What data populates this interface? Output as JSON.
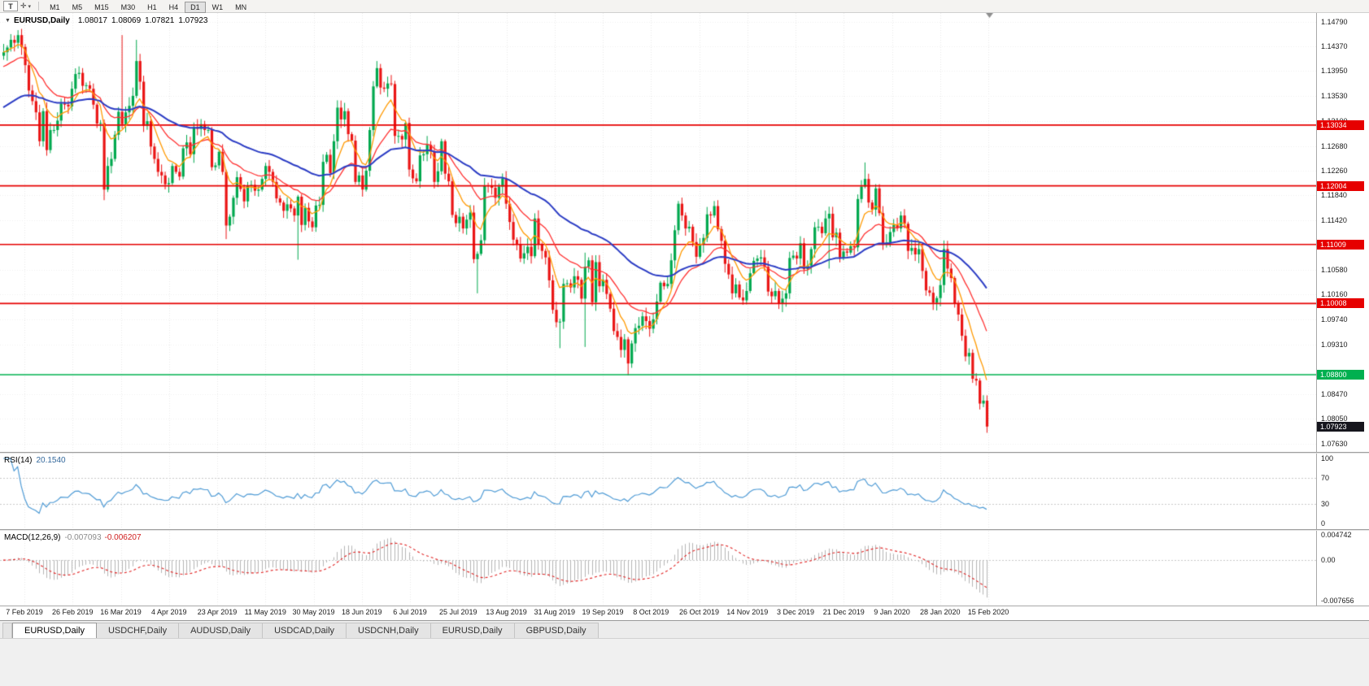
{
  "toolbar": {
    "text_tool_label": "T",
    "icons": {
      "crosshair": "✛",
      "caret": "▾"
    },
    "timeframes": [
      "M1",
      "M5",
      "M15",
      "M30",
      "H1",
      "H4",
      "D1",
      "W1",
      "MN"
    ],
    "active_timeframe": "D1"
  },
  "chart_title": {
    "collapse_icon": "▼",
    "symbol": "EURUSD,Daily",
    "open": "1.08017",
    "high": "1.08069",
    "low": "1.07821",
    "close": "1.07923"
  },
  "main_pane": {
    "y_axis_ticks": [
      "1.14790",
      "1.14370",
      "1.13950",
      "1.13530",
      "1.13100",
      "1.12680",
      "1.12260",
      "1.11840",
      "1.11420",
      "1.10580",
      "1.10160",
      "1.09740",
      "1.09310",
      "1.08470",
      "1.08050",
      "1.07630"
    ],
    "levels": [
      {
        "price": 1.13034,
        "label": "1.13034",
        "color": "#e60000"
      },
      {
        "price": 1.12004,
        "label": "1.12004",
        "color": "#e60000"
      },
      {
        "price": 1.11009,
        "label": "1.11009",
        "color": "#e60000"
      },
      {
        "price": 1.10008,
        "label": "1.10008",
        "color": "#e60000"
      },
      {
        "price": 1.088,
        "label": "1.08800",
        "color": "#00b050"
      }
    ],
    "current_price": {
      "price": 1.07923,
      "label": "1.07923",
      "color": "#16161d"
    }
  },
  "rsi": {
    "label": "RSI(14)",
    "value": "20.1540",
    "period": 14,
    "dashed_levels": [
      70,
      30
    ],
    "axis_labels": [
      {
        "v": 100,
        "t": "100"
      },
      {
        "v": 70,
        "t": "70"
      },
      {
        "v": 30,
        "t": "30"
      },
      {
        "v": 0,
        "t": "0"
      }
    ]
  },
  "macd": {
    "label": "MACD(12,26,9)",
    "value_main": "-0.007093",
    "value_signal": "-0.006207",
    "fast": 12,
    "slow": 26,
    "signal": 9,
    "axis_labels": [
      {
        "v": 0.004742,
        "t": "0.004742"
      },
      {
        "v": 0,
        "t": "0.00"
      },
      {
        "v": -0.007656,
        "t": "-0.007656"
      }
    ]
  },
  "bottom_tabs": {
    "items": [
      "EURUSD,Daily",
      "USDCHF,Daily",
      "AUDUSD,Daily",
      "USDCAD,Daily",
      "USDCNH,Daily",
      "EURUSD,Daily",
      "GBPUSD,Daily"
    ],
    "active_index": 0
  },
  "chart_data": {
    "type": "candlestick",
    "symbol": "EURUSD",
    "timeframe": "Daily",
    "current_quote": {
      "open": 1.08017,
      "high": 1.08069,
      "low": 1.07821,
      "close": 1.07923
    },
    "horizontal_levels": [
      1.13034,
      1.12004,
      1.11009,
      1.10008,
      1.088
    ],
    "y_range": [
      1.0763,
      1.1479
    ],
    "rsi_current": 20.154,
    "macd_current": -0.007093,
    "macd_signal_current": -0.006207,
    "dates": [
      "7 Feb 2019",
      "26 Feb 2019",
      "16 Mar 2019",
      "4 Apr 2019",
      "23 Apr 2019",
      "11 May 2019",
      "30 May 2019",
      "18 Jun 2019",
      "6 Jul 2019",
      "25 Jul 2019",
      "13 Aug 2019",
      "31 Aug 2019",
      "19 Sep 2019",
      "8 Oct 2019",
      "26 Oct 2019",
      "14 Nov 2019",
      "3 Dec 2019",
      "21 Dec 2019",
      "9 Jan 2020",
      "28 Jan 2020",
      "15 Feb 2020"
    ],
    "closes": [
      1.1427,
      1.1435,
      1.1448,
      1.1443,
      1.1456,
      1.1436,
      1.1405,
      1.1362,
      1.1344,
      1.1325,
      1.1276,
      1.1327,
      1.1261,
      1.1295,
      1.1295,
      1.1311,
      1.134,
      1.1338,
      1.1335,
      1.1365,
      1.139,
      1.1392,
      1.137,
      1.1371,
      1.1365,
      1.1338,
      1.1306,
      1.1307,
      1.1194,
      1.1234,
      1.1246,
      1.1287,
      1.1326,
      1.1305,
      1.1325,
      1.1336,
      1.1353,
      1.1412,
      1.1377,
      1.1302,
      1.131,
      1.1267,
      1.1246,
      1.1224,
      1.1218,
      1.1203,
      1.1205,
      1.1234,
      1.1224,
      1.1216,
      1.1264,
      1.1274,
      1.1254,
      1.13,
      1.1297,
      1.1305,
      1.1295,
      1.1295,
      1.1232,
      1.1235,
      1.1258,
      1.1224,
      1.1133,
      1.1148,
      1.118,
      1.1215,
      1.1195,
      1.1174,
      1.12,
      1.1202,
      1.1192,
      1.1194,
      1.1212,
      1.1234,
      1.1224,
      1.1207,
      1.1179,
      1.1172,
      1.1158,
      1.1169,
      1.1162,
      1.115,
      1.1182,
      1.1134,
      1.1163,
      1.114,
      1.113,
      1.1167,
      1.1168,
      1.1241,
      1.1253,
      1.1222,
      1.1276,
      1.1333,
      1.1313,
      1.1327,
      1.1288,
      1.1277,
      1.1207,
      1.1218,
      1.1194,
      1.1226,
      1.1295,
      1.1369,
      1.14,
      1.1367,
      1.1365,
      1.1374,
      1.1373,
      1.1285,
      1.1285,
      1.1279,
      1.1307,
      1.1228,
      1.1213,
      1.1208,
      1.1252,
      1.1254,
      1.127,
      1.1258,
      1.1207,
      1.1225,
      1.1276,
      1.1221,
      1.1208,
      1.1151,
      1.1137,
      1.1148,
      1.1128,
      1.1143,
      1.1155,
      1.1076,
      1.1085,
      1.1108,
      1.1201,
      1.12,
      1.1197,
      1.118,
      1.1199,
      1.1213,
      1.117,
      1.1139,
      1.1109,
      1.1102,
      1.1077,
      1.1086,
      1.1097,
      1.1081,
      1.1145,
      1.1101,
      1.109,
      1.1079,
      1.104,
      1.099,
      1.0969,
      1.097,
      1.1034,
      1.1035,
      1.1028,
      1.1047,
      1.1041,
      1.1009,
      1.1063,
      1.1074,
      1.1003,
      1.1071,
      1.103,
      1.1041,
      1.1017,
      1.0992,
      1.0954,
      1.0944,
      1.0922,
      1.094,
      1.0899,
      1.0933,
      1.0959,
      1.0963,
      1.0979,
      1.0971,
      1.0958,
      1.0974,
      1.1004,
      1.1036,
      1.103,
      1.1034,
      1.1074,
      1.1125,
      1.117,
      1.115,
      1.1128,
      1.1131,
      1.1105,
      1.108,
      1.1101,
      1.1112,
      1.1152,
      1.115,
      1.1166,
      1.1127,
      1.1107,
      1.1068,
      1.105,
      1.1018,
      1.1033,
      1.1011,
      1.1006,
      1.1022,
      1.1052,
      1.1073,
      1.1077,
      1.1079,
      1.1063,
      1.1021,
      1.1013,
      1.1022,
      1.1001,
      1.1009,
      1.1018,
      1.1078,
      1.1082,
      1.1077,
      1.1103,
      1.1059,
      1.1065,
      1.1093,
      1.113,
      1.1131,
      1.112,
      1.1145,
      1.1153,
      1.1113,
      1.1121,
      1.1079,
      1.1089,
      1.1087,
      1.1098,
      1.1096,
      1.1178,
      1.1199,
      1.1212,
      1.1172,
      1.116,
      1.1196,
      1.1154,
      1.1103,
      1.1104,
      1.1122,
      1.1134,
      1.1128,
      1.115,
      1.1136,
      1.109,
      1.1095,
      1.1084,
      1.1093,
      1.1056,
      1.1023,
      1.1019,
      1.1002,
      1.101,
      1.1032,
      1.1093,
      1.106,
      1.1044,
      1.1,
      1.0982,
      1.0946,
      1.0911,
      1.0917,
      1.0873,
      1.087,
      1.0831,
      1.0836,
      1.0792
    ],
    "wick_overrides": {
      "28": [
        0.0006,
        0.0018
      ],
      "33": [
        0.013,
        0.0008
      ],
      "37": [
        0.0036,
        0.0004
      ],
      "62": [
        0.0004,
        0.0023
      ],
      "82": [
        0.0003,
        0.0075
      ],
      "104": [
        0.0012,
        0.0003
      ],
      "132": [
        0.0004,
        0.0058
      ],
      "155": [
        0.0005,
        0.0044
      ],
      "162": [
        0.0024,
        0.0082
      ],
      "174": [
        0.0004,
        0.002
      ],
      "230": [
        0.0012,
        0.0085
      ],
      "240": [
        0.0028,
        0.0003
      ],
      "272": [
        0.0004,
        0.001
      ]
    },
    "colors": {
      "candle_up": "#00a84e",
      "candle_down": "#ea1515",
      "ma_fast": "#ff9900",
      "ma_mid": "#ff3030",
      "ma_slow": "#2b3cc4",
      "rsi_line": "#4f9bd5",
      "macd_hist": "#b4b4b4",
      "macd_signal": "#e02020",
      "level_red": "#e60000",
      "level_green": "#00b050"
    }
  }
}
